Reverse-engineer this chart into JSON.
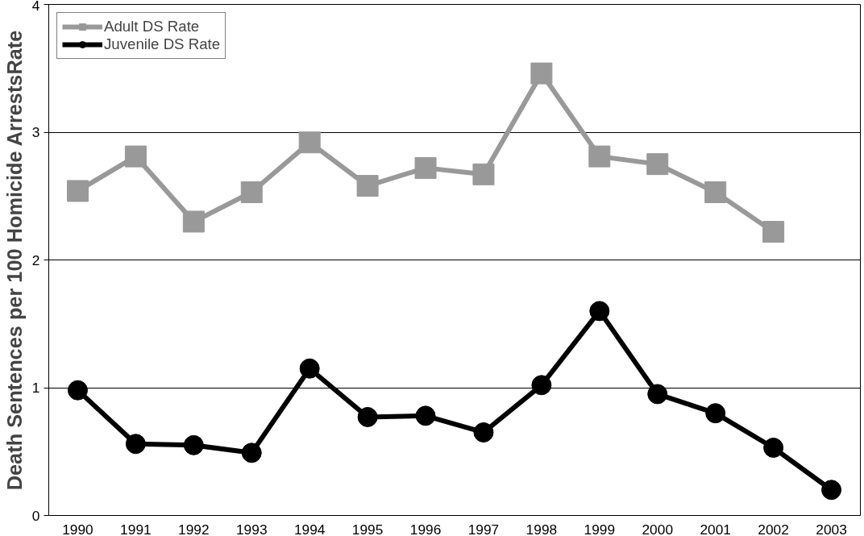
{
  "chart_data": {
    "type": "line",
    "ylabel": "Death Sentences per 100 Homicide ArrestsRate",
    "categories": [
      "1990",
      "1991",
      "1992",
      "1993",
      "1994",
      "1995",
      "1996",
      "1997",
      "1998",
      "1999",
      "2000",
      "2001",
      "2002",
      "2003"
    ],
    "series": [
      {
        "name": "Adult DS Rate",
        "color": "#999999",
        "marker": "square",
        "values": [
          2.54,
          2.81,
          2.3,
          2.53,
          2.92,
          2.58,
          2.72,
          2.67,
          3.46,
          2.81,
          2.75,
          2.53,
          2.22,
          null
        ]
      },
      {
        "name": "Juvenile DS Rate",
        "color": "#000000",
        "marker": "circle",
        "values": [
          0.98,
          0.56,
          0.55,
          0.49,
          1.15,
          0.77,
          0.78,
          0.65,
          1.02,
          1.6,
          0.95,
          0.8,
          0.53,
          0.2
        ]
      }
    ],
    "ylim": [
      0,
      4
    ],
    "yticks": [
      0,
      1,
      2,
      3,
      4
    ],
    "grid": "y",
    "legend": "top left",
    "line_style": "solid"
  }
}
